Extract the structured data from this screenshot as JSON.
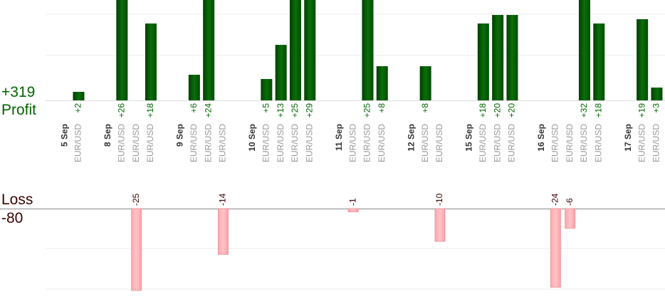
{
  "summary": {
    "profit_total": "+319",
    "profit_label": "Profit",
    "loss_label": "Loss",
    "loss_total": "-80"
  },
  "colors": {
    "profit_dark": "#004d00",
    "profit_light": "#1f8a1f",
    "loss_fill": "#ffb3b8",
    "loss_stroke": "#e89aa0",
    "profit_text": "#006400",
    "loss_text": "#3a0000",
    "date_text": "#333333",
    "pair_text": "#999999",
    "grid": "#eeeeee",
    "axis": "#888888"
  },
  "chart_data": {
    "type": "bar",
    "description_axis": "trades grouped by day, profit above, loss below",
    "scale_note": "bars taller than the panel are clipped",
    "profit_ylim": [
      0,
      32
    ],
    "loss_ylim": [
      0,
      25
    ],
    "columns": [
      {
        "kind": "date",
        "label": "5 Sep"
      },
      {
        "kind": "trade",
        "pair": "EUR/USD",
        "value": 2
      },
      {
        "kind": "gap"
      },
      {
        "kind": "date",
        "label": "8 Sep"
      },
      {
        "kind": "trade",
        "pair": "EUR/USD",
        "value": 26
      },
      {
        "kind": "trade",
        "pair": "EUR/USD",
        "value": -25
      },
      {
        "kind": "trade",
        "pair": "EUR/USD",
        "value": 18
      },
      {
        "kind": "gap"
      },
      {
        "kind": "date",
        "label": "9 Sep"
      },
      {
        "kind": "trade",
        "pair": "EUR/USD",
        "value": 6
      },
      {
        "kind": "trade",
        "pair": "EUR/USD",
        "value": 24
      },
      {
        "kind": "trade",
        "pair": "EUR/USD",
        "value": -14
      },
      {
        "kind": "gap"
      },
      {
        "kind": "date",
        "label": "10 Sep"
      },
      {
        "kind": "trade",
        "pair": "EUR/USD",
        "value": 5
      },
      {
        "kind": "trade",
        "pair": "EUR/USD",
        "value": 13
      },
      {
        "kind": "trade",
        "pair": "EUR/USD",
        "value": 25
      },
      {
        "kind": "trade",
        "pair": "EUR/USD",
        "value": 29
      },
      {
        "kind": "gap"
      },
      {
        "kind": "date",
        "label": "11 Sep"
      },
      {
        "kind": "trade",
        "pair": "EUR/USD",
        "value": -1
      },
      {
        "kind": "trade",
        "pair": "EUR/USD",
        "value": 25
      },
      {
        "kind": "trade",
        "pair": "EUR/USD",
        "value": 8
      },
      {
        "kind": "gap"
      },
      {
        "kind": "date",
        "label": "12 Sep"
      },
      {
        "kind": "trade",
        "pair": "EUR/USD",
        "value": 8
      },
      {
        "kind": "trade",
        "pair": "EUR/USD",
        "value": -10
      },
      {
        "kind": "gap"
      },
      {
        "kind": "date",
        "label": "15 Sep"
      },
      {
        "kind": "trade",
        "pair": "EUR/USD",
        "value": 18
      },
      {
        "kind": "trade",
        "pair": "EUR/USD",
        "value": 20
      },
      {
        "kind": "trade",
        "pair": "EUR/USD",
        "value": 20
      },
      {
        "kind": "gap"
      },
      {
        "kind": "date",
        "label": "16 Sep"
      },
      {
        "kind": "trade",
        "pair": "EUR/USD",
        "value": -24
      },
      {
        "kind": "trade",
        "pair": "EUR/USD",
        "value": -6
      },
      {
        "kind": "trade",
        "pair": "EUR/USD",
        "value": 32
      },
      {
        "kind": "trade",
        "pair": "EUR/USD",
        "value": 18
      },
      {
        "kind": "gap"
      },
      {
        "kind": "date",
        "label": "17 Sep"
      },
      {
        "kind": "trade",
        "pair": "EUR/USD",
        "value": 19
      },
      {
        "kind": "trade",
        "pair": "EUR/USD",
        "value": 3
      }
    ]
  }
}
